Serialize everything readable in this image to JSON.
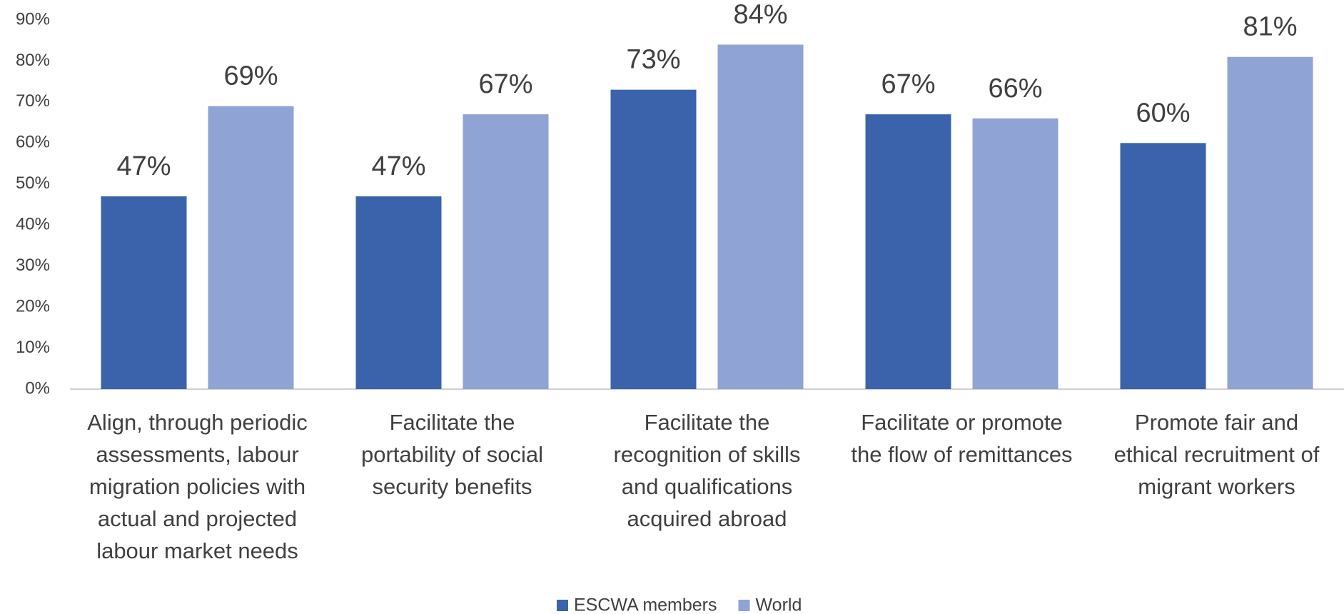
{
  "chart_data": {
    "type": "bar",
    "categories": [
      [
        "Align, through periodic",
        "assessments, labour",
        "migration policies with",
        "actual and projected",
        "labour market needs"
      ],
      [
        "Facilitate the",
        "portability of social",
        "security benefits"
      ],
      [
        "Facilitate the",
        "recognition of skills",
        "and qualifications",
        "acquired abroad"
      ],
      [
        "Facilitate or promote",
        "the flow of remittances"
      ],
      [
        "Promote fair and",
        "ethical recruitment of",
        "migrant workers"
      ]
    ],
    "series": [
      {
        "name": "ESCWA members",
        "color": "#3a63ac",
        "values": [
          47,
          47,
          73,
          67,
          60
        ],
        "value_labels": [
          "47%",
          "47%",
          "73%",
          "67%",
          "60%"
        ]
      },
      {
        "name": "World",
        "color": "#8fa3d5",
        "values": [
          69,
          67,
          84,
          66,
          81
        ],
        "value_labels": [
          "69%",
          "67%",
          "84%",
          "66%",
          "81%"
        ]
      }
    ],
    "ylim": [
      0,
      90
    ],
    "yticks": [
      {
        "value": 0,
        "label": "0%"
      },
      {
        "value": 10,
        "label": "10%"
      },
      {
        "value": 20,
        "label": "20%"
      },
      {
        "value": 30,
        "label": "30%"
      },
      {
        "value": 40,
        "label": "40%"
      },
      {
        "value": 50,
        "label": "50%"
      },
      {
        "value": 60,
        "label": "60%"
      },
      {
        "value": 70,
        "label": "70%"
      },
      {
        "value": 80,
        "label": "80%"
      },
      {
        "value": 90,
        "label": "90%"
      }
    ],
    "legend": "bottom"
  }
}
